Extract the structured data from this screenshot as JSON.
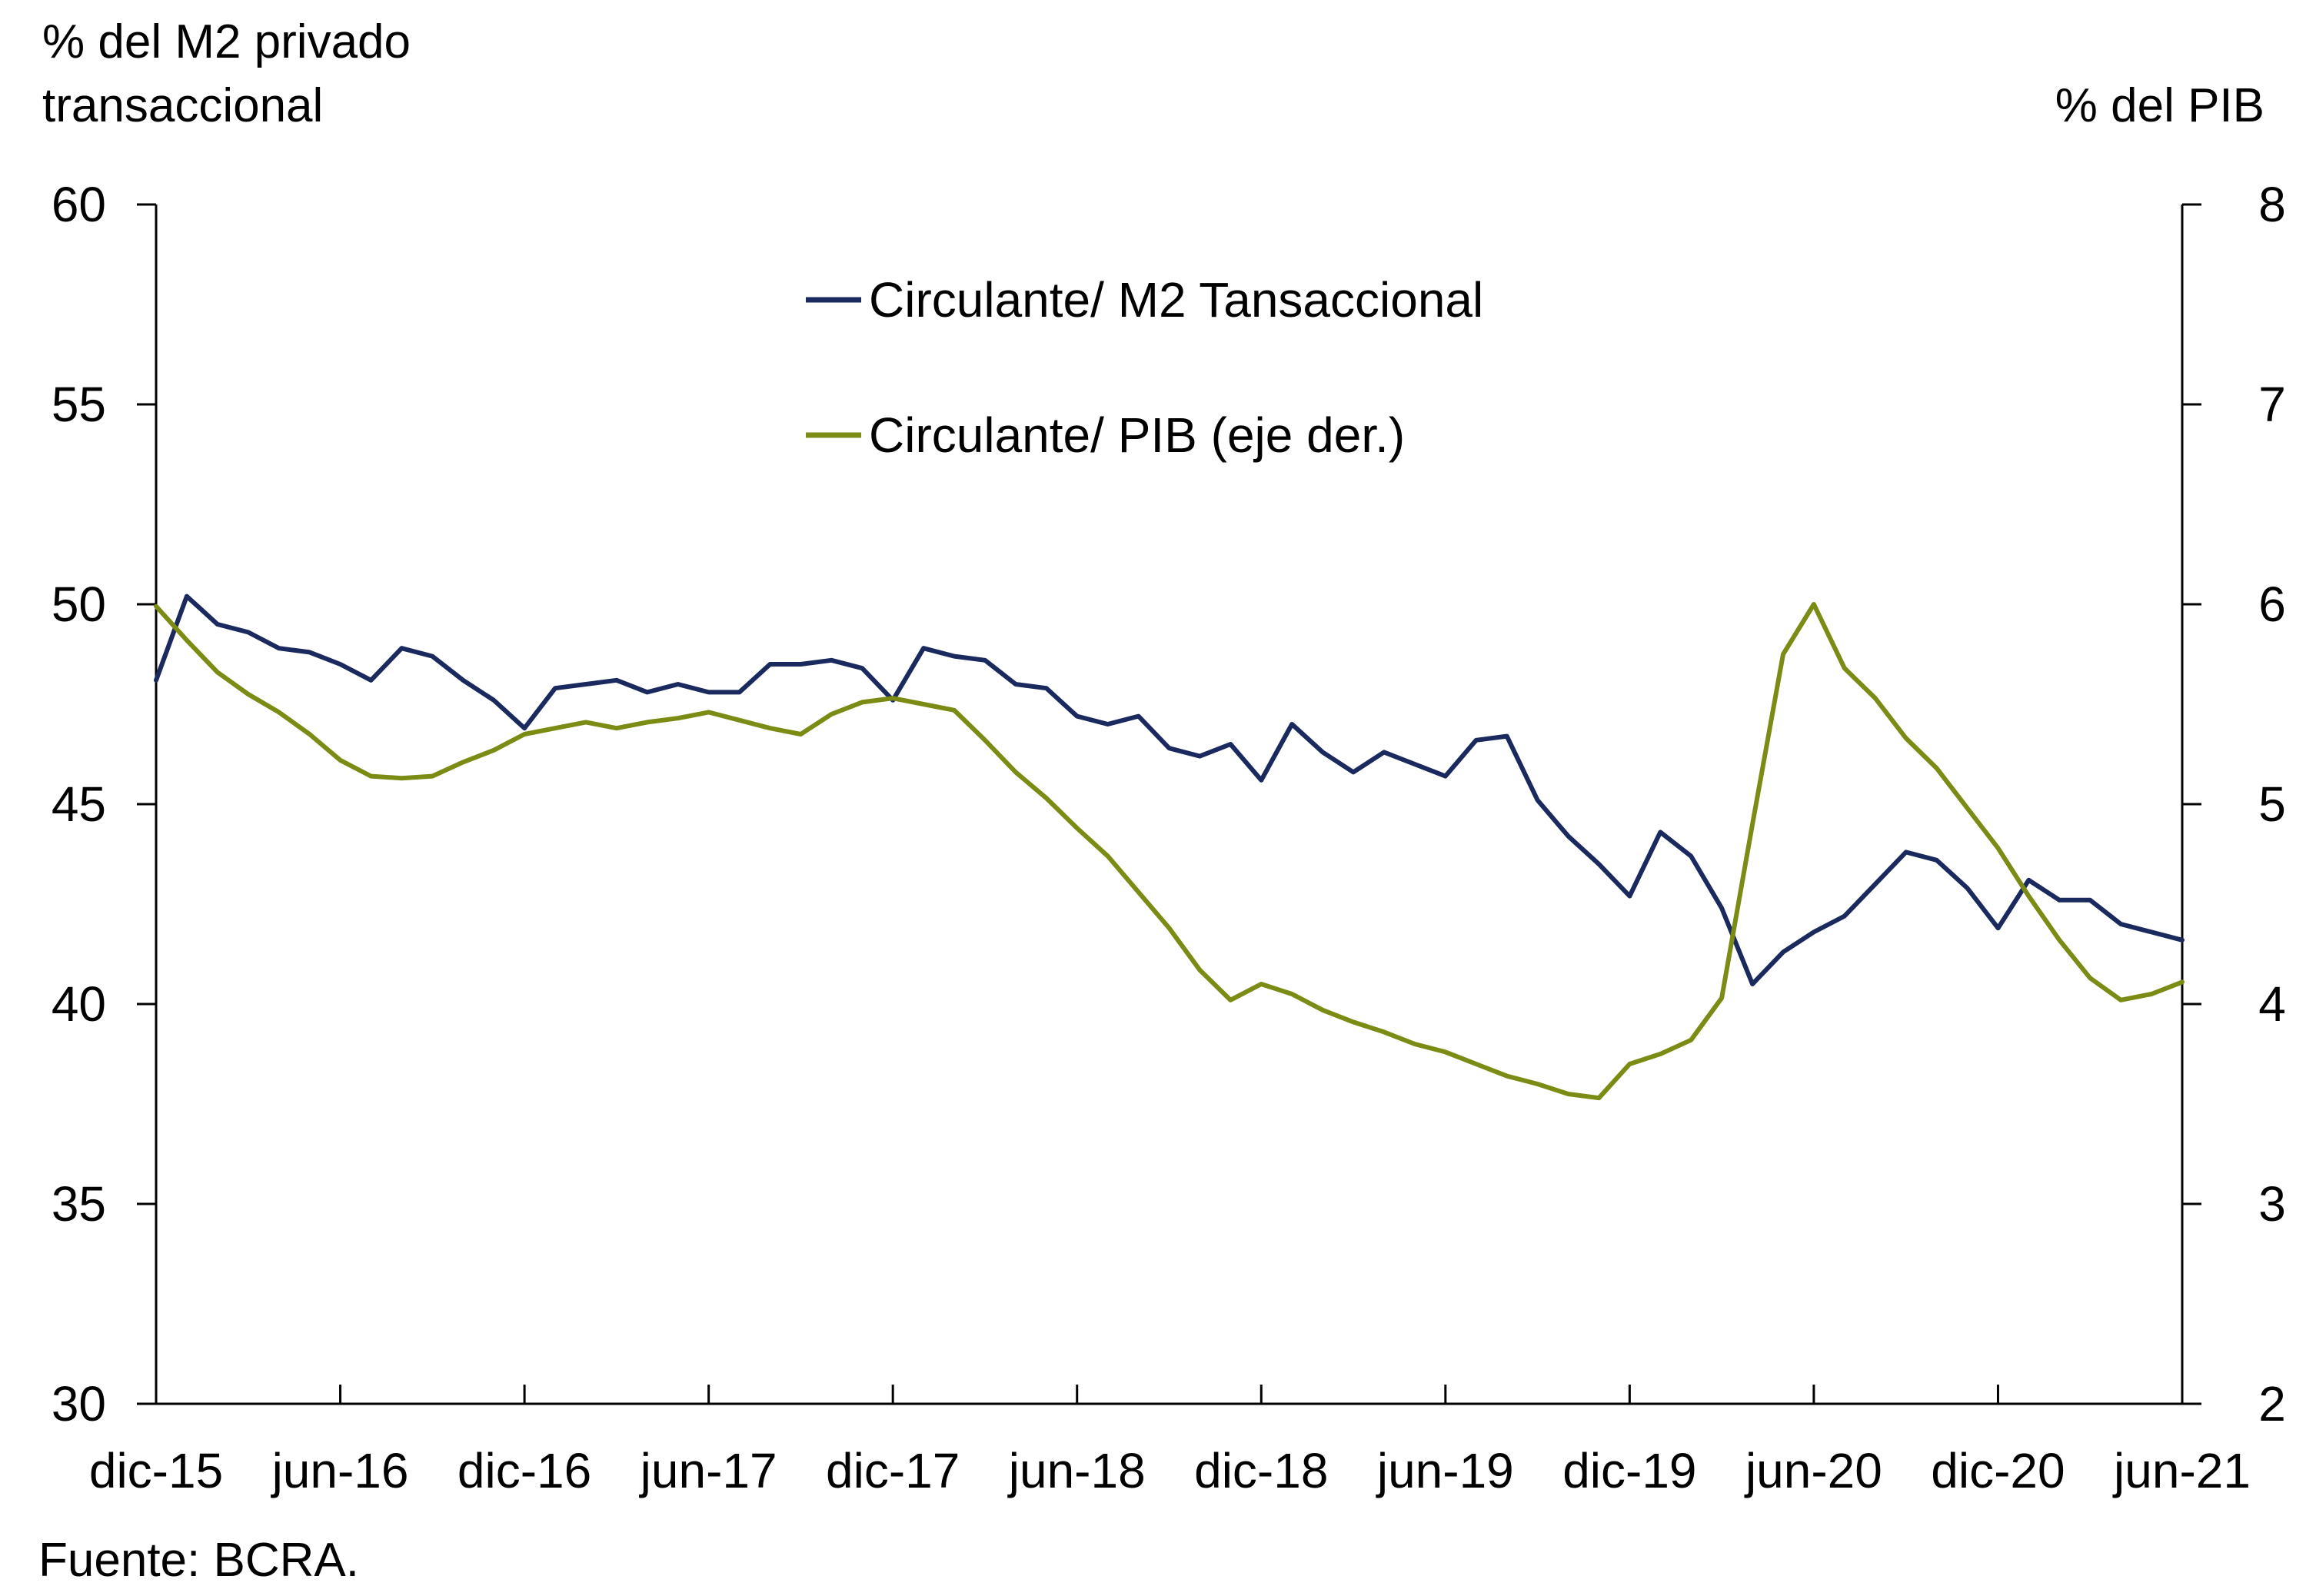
{
  "chart_data": {
    "type": "line",
    "ylabel_left": [
      "% del M2 privado",
      "transaccional"
    ],
    "ylabel_right": "% del PIB",
    "source": "Fuente: BCRA.",
    "ylim_left": [
      30,
      60
    ],
    "ylim_right": [
      2,
      8
    ],
    "yticks_left": [
      30,
      35,
      40,
      45,
      50,
      55,
      60
    ],
    "yticks_right": [
      2,
      3,
      4,
      5,
      6,
      7,
      8
    ],
    "xtick_labels": [
      "dic-15",
      "jun-16",
      "dic-16",
      "jun-17",
      "dic-17",
      "jun-18",
      "dic-18",
      "jun-19",
      "dic-19",
      "jun-20",
      "dic-20",
      "jun-21"
    ],
    "x_start": "dic-15",
    "n_months": 67,
    "grid": false,
    "legend_position": "top-center",
    "series": [
      {
        "name": "Circulante/ M2 Tansaccional",
        "axis": "left",
        "color": "#1b2a5e",
        "values": [
          48.1,
          50.2,
          49.5,
          49.3,
          48.9,
          48.8,
          48.5,
          48.1,
          48.9,
          48.7,
          48.1,
          47.6,
          46.9,
          47.9,
          48.0,
          48.1,
          47.8,
          48.0,
          47.8,
          47.8,
          48.5,
          48.5,
          48.6,
          48.4,
          47.6,
          48.9,
          48.7,
          48.6,
          48.0,
          47.9,
          47.2,
          47.0,
          47.2,
          46.4,
          46.2,
          46.5,
          45.6,
          47.0,
          46.3,
          45.8,
          46.3,
          46.0,
          45.7,
          46.6,
          46.7,
          45.1,
          44.2,
          43.5,
          42.7,
          44.3,
          43.7,
          42.4,
          40.5,
          41.3,
          41.8,
          42.2,
          43.0,
          43.8,
          43.6,
          42.9,
          41.9,
          43.1,
          42.6,
          42.6,
          42.0,
          41.8,
          41.6
        ]
      },
      {
        "name": "Circulante/ PIB (eje der.)",
        "axis": "right",
        "color": "#7c8b14",
        "values": [
          5.99,
          5.82,
          5.66,
          5.55,
          5.46,
          5.35,
          5.22,
          5.14,
          5.13,
          5.14,
          5.21,
          5.27,
          5.35,
          5.38,
          5.41,
          5.38,
          5.41,
          5.43,
          5.46,
          5.42,
          5.38,
          5.35,
          5.45,
          5.51,
          5.53,
          5.5,
          5.47,
          5.32,
          5.16,
          5.03,
          4.88,
          4.74,
          4.56,
          4.38,
          4.17,
          4.02,
          4.1,
          4.05,
          3.97,
          3.91,
          3.86,
          3.8,
          3.76,
          3.7,
          3.64,
          3.6,
          3.55,
          3.53,
          3.7,
          3.75,
          3.82,
          4.03,
          4.9,
          5.75,
          6.0,
          5.68,
          5.53,
          5.33,
          5.18,
          4.98,
          4.78,
          4.54,
          4.32,
          4.13,
          4.02,
          4.05,
          4.11
        ]
      }
    ]
  }
}
